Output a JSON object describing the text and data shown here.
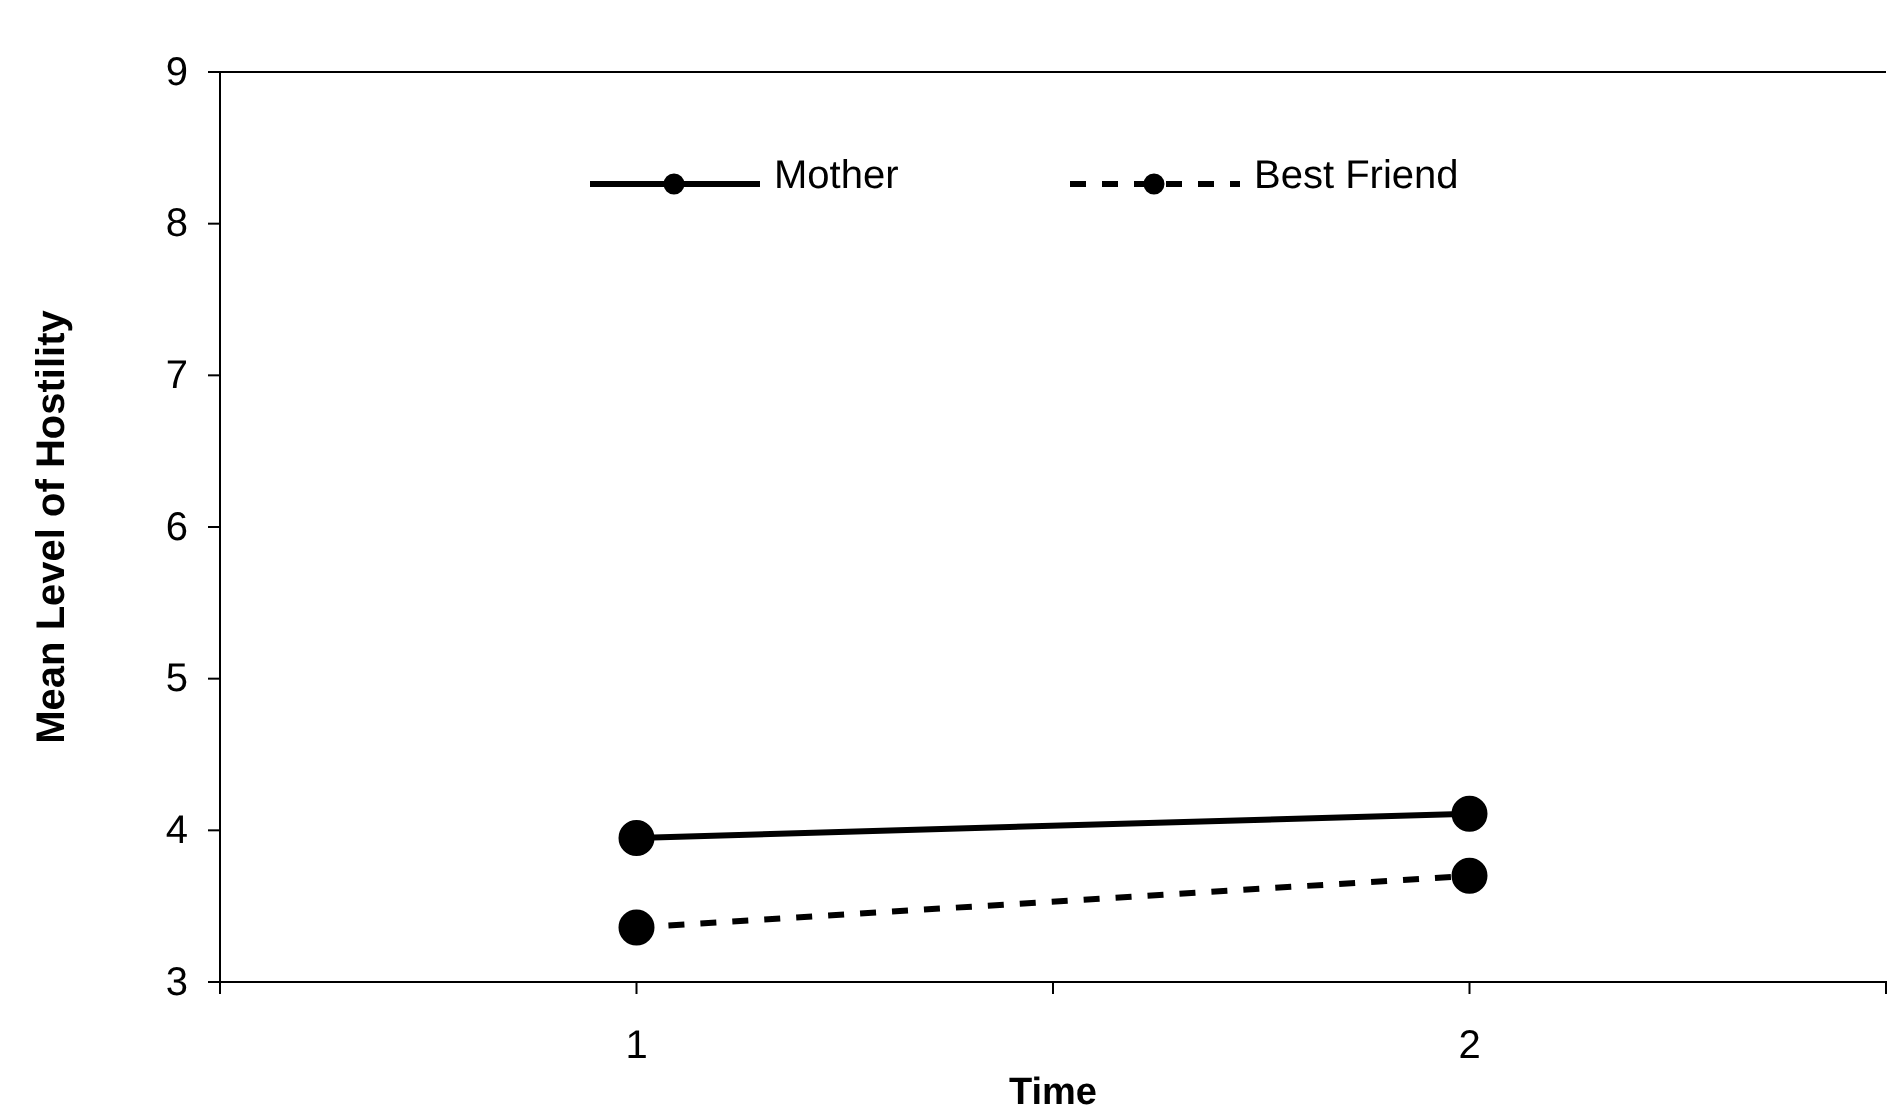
{
  "chart_data": {
    "type": "line",
    "xlabel": "Time",
    "ylabel": "Mean Level of Hostility",
    "x": [
      1,
      2
    ],
    "xlim": [
      0.5,
      2.5
    ],
    "xticks": [
      {
        "value": 0.5,
        "label": null
      },
      1,
      {
        "value": 1.5,
        "label": null
      },
      2,
      {
        "value": 2.5,
        "label": null
      }
    ],
    "series": [
      {
        "name": "Mother",
        "color": "#000000",
        "values": [
          3.95,
          4.11
        ],
        "line_style": "solid",
        "marker": "circle"
      },
      {
        "name": "Best Friend",
        "color": "#000000",
        "values": [
          3.36,
          3.7
        ],
        "line_style": "dashed",
        "marker": "circle"
      }
    ],
    "ylim": [
      3,
      9
    ],
    "yticks": [
      3,
      4,
      5,
      6,
      7,
      8,
      9
    ],
    "grid": false,
    "legend": "top"
  }
}
